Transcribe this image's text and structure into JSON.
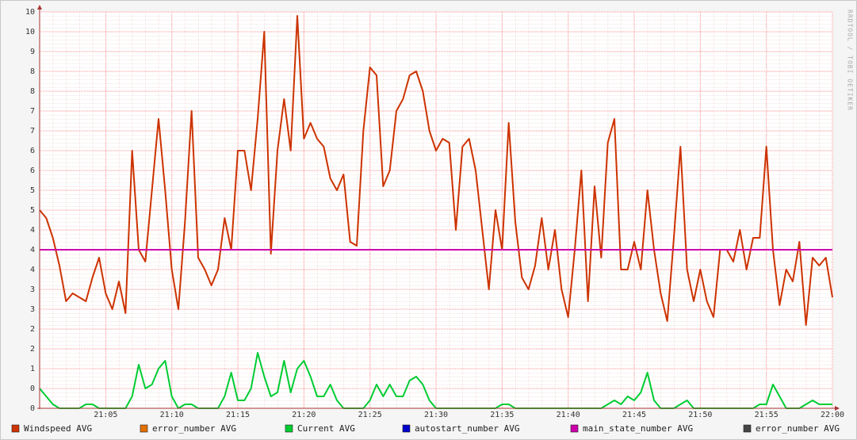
{
  "chart_data": {
    "type": "line",
    "watermark": "RRDTOOL / TOBI OETIKER",
    "xlim": [
      1260,
      1320
    ],
    "xticks": [
      {
        "value": 1265,
        "label": "21:05"
      },
      {
        "value": 1270,
        "label": "21:10"
      },
      {
        "value": 1275,
        "label": "21:15"
      },
      {
        "value": 1280,
        "label": "21:20"
      },
      {
        "value": 1285,
        "label": "21:25"
      },
      {
        "value": 1290,
        "label": "21:30"
      },
      {
        "value": 1295,
        "label": "21:35"
      },
      {
        "value": 1300,
        "label": "21:40"
      },
      {
        "value": 1305,
        "label": "21:45"
      },
      {
        "value": 1310,
        "label": "21:50"
      },
      {
        "value": 1315,
        "label": "21:55"
      },
      {
        "value": 1320,
        "label": "22:00"
      }
    ],
    "ylim": [
      0,
      10
    ],
    "yticks": [
      0,
      {
        "value": 0.5,
        "label": "0"
      },
      1,
      {
        "value": 1.5,
        "label": "2"
      },
      2,
      {
        "value": 2.5,
        "label": "3"
      },
      3,
      {
        "value": 3.5,
        "label": "4"
      },
      4,
      {
        "value": 4.5,
        "label": "4"
      },
      5,
      {
        "value": 5.5,
        "label": "5"
      },
      6,
      {
        "value": 6.5,
        "label": "6"
      },
      7,
      {
        "value": 7.5,
        "label": "7"
      },
      8,
      {
        "value": 8.5,
        "label": "8"
      },
      9,
      {
        "value": 9.5,
        "label": "10"
      },
      10
    ],
    "grid": true,
    "x": [
      1260,
      1260.5,
      1261,
      1261.5,
      1262,
      1262.5,
      1263,
      1263.5,
      1264,
      1264.5,
      1265,
      1265.5,
      1266,
      1266.5,
      1267,
      1267.5,
      1268,
      1268.5,
      1269,
      1269.5,
      1270,
      1270.5,
      1271,
      1271.5,
      1272,
      1272.5,
      1273,
      1273.5,
      1274,
      1274.5,
      1275,
      1275.5,
      1276,
      1276.5,
      1277,
      1277.5,
      1278,
      1278.5,
      1279,
      1279.5,
      1280,
      1280.5,
      1281,
      1281.5,
      1282,
      1282.5,
      1283,
      1283.5,
      1284,
      1284.5,
      1285,
      1285.5,
      1286,
      1286.5,
      1287,
      1287.5,
      1288,
      1288.5,
      1289,
      1289.5,
      1290,
      1290.5,
      1291,
      1291.5,
      1292,
      1292.5,
      1293,
      1293.5,
      1294,
      1294.5,
      1295,
      1295.5,
      1296,
      1296.5,
      1297,
      1297.5,
      1298,
      1298.5,
      1299,
      1299.5,
      1300,
      1300.5,
      1301,
      1301.5,
      1302,
      1302.5,
      1303,
      1303.5,
      1304,
      1304.5,
      1305,
      1305.5,
      1306,
      1306.5,
      1307,
      1307.5,
      1308,
      1308.5,
      1309,
      1309.5,
      1310,
      1310.5,
      1311,
      1311.5,
      1312,
      1312.5,
      1313,
      1313.5,
      1314,
      1314.5,
      1315,
      1315.5,
      1316,
      1316.5,
      1317,
      1317.5,
      1318,
      1318.5,
      1319,
      1319.5,
      1320
    ],
    "series": [
      {
        "name": "Windspeed AVG",
        "color": "#cc3300",
        "values": [
          5.0,
          4.8,
          4.3,
          3.6,
          2.7,
          2.9,
          2.8,
          2.7,
          3.3,
          3.8,
          2.9,
          2.5,
          3.2,
          2.4,
          6.5,
          4.0,
          3.7,
          5.5,
          7.3,
          5.5,
          3.5,
          2.5,
          4.7,
          7.5,
          3.8,
          3.5,
          3.1,
          3.5,
          4.8,
          4.0,
          6.5,
          6.5,
          5.5,
          7.3,
          9.5,
          3.9,
          6.5,
          7.8,
          6.5,
          9.9,
          6.8,
          7.2,
          6.8,
          6.6,
          5.8,
          5.5,
          5.9,
          4.2,
          4.1,
          7.0,
          8.6,
          8.4,
          5.6,
          6.0,
          7.5,
          7.8,
          8.4,
          8.5,
          8.0,
          7.0,
          6.5,
          6.8,
          6.7,
          4.5,
          6.6,
          6.8,
          6.0,
          4.5,
          3.0,
          5.0,
          4.0,
          7.2,
          4.7,
          3.3,
          3.0,
          3.6,
          4.8,
          3.5,
          4.5,
          3.0,
          2.3,
          4.0,
          6.0,
          2.7,
          5.6,
          3.8,
          6.7,
          7.3,
          3.5,
          3.5,
          4.2,
          3.5,
          5.5,
          4.0,
          2.9,
          2.2,
          4.3,
          6.6,
          3.5,
          2.7,
          3.5,
          2.7,
          2.3,
          4.0,
          4.0,
          3.7,
          4.5,
          3.5,
          4.3,
          4.3,
          6.6,
          4.0,
          2.6,
          3.5,
          3.2,
          4.2,
          2.1,
          3.8,
          3.6,
          3.8,
          2.8
        ]
      },
      {
        "name": "error_number AVG",
        "color": "#e07000"
      },
      {
        "name": "Current AVG",
        "color": "#00cc33",
        "values": [
          0.5,
          0.3,
          0.1,
          0,
          0,
          0,
          0,
          0.1,
          0.1,
          0,
          0,
          0,
          0,
          0,
          0.3,
          1.1,
          0.5,
          0.6,
          1.0,
          1.2,
          0.3,
          0,
          0.1,
          0.1,
          0,
          0,
          0,
          0,
          0.3,
          0.9,
          0.2,
          0.2,
          0.5,
          1.4,
          0.8,
          0.3,
          0.4,
          1.2,
          0.4,
          1.0,
          1.2,
          0.8,
          0.3,
          0.3,
          0.6,
          0.2,
          0,
          0,
          0,
          0,
          0.2,
          0.6,
          0.3,
          0.6,
          0.3,
          0.3,
          0.7,
          0.8,
          0.6,
          0.2,
          0,
          0,
          0,
          0,
          0,
          0,
          0,
          0,
          0,
          0,
          0.1,
          0.1,
          0,
          0,
          0,
          0,
          0,
          0,
          0,
          0,
          0,
          0,
          0,
          0,
          0,
          0,
          0.1,
          0.2,
          0.1,
          0.3,
          0.2,
          0.4,
          0.9,
          0.2,
          0,
          0,
          0,
          0.1,
          0.2,
          0,
          0,
          0,
          0,
          0,
          0,
          0,
          0,
          0,
          0,
          0.1,
          0.1,
          0.6,
          0.3,
          0,
          0,
          0,
          0.1,
          0.2,
          0.1,
          0.1,
          0.1
        ]
      },
      {
        "name": "autostart_number AVG",
        "color": "#0000cc"
      },
      {
        "name": "main_state_number AVG",
        "color": "#cc00aa",
        "values": [
          4,
          4,
          4,
          4,
          4,
          4,
          4,
          4,
          4,
          4,
          4,
          4,
          4,
          4,
          4,
          4,
          4,
          4,
          4,
          4,
          4,
          4,
          4,
          4,
          4,
          4,
          4,
          4,
          4,
          4,
          4,
          4,
          4,
          4,
          4,
          4,
          4,
          4,
          4,
          4,
          4,
          4,
          4,
          4,
          4,
          4,
          4,
          4,
          4,
          4,
          4,
          4,
          4,
          4,
          4,
          4,
          4,
          4,
          4,
          4,
          4,
          4,
          4,
          4,
          4,
          4,
          4,
          4,
          4,
          4,
          4,
          4,
          4,
          4,
          4,
          4,
          4,
          4,
          4,
          4,
          4,
          4,
          4,
          4,
          4,
          4,
          4,
          4,
          4,
          4,
          4,
          4,
          4,
          4,
          4,
          4,
          4,
          4,
          4,
          4,
          4,
          4,
          4,
          4,
          4,
          4,
          4,
          4,
          4,
          4,
          4,
          4,
          4,
          4,
          4,
          4,
          4,
          4,
          4,
          4,
          4
        ]
      },
      {
        "name": "error_number AVG",
        "color": "#444444"
      }
    ]
  }
}
